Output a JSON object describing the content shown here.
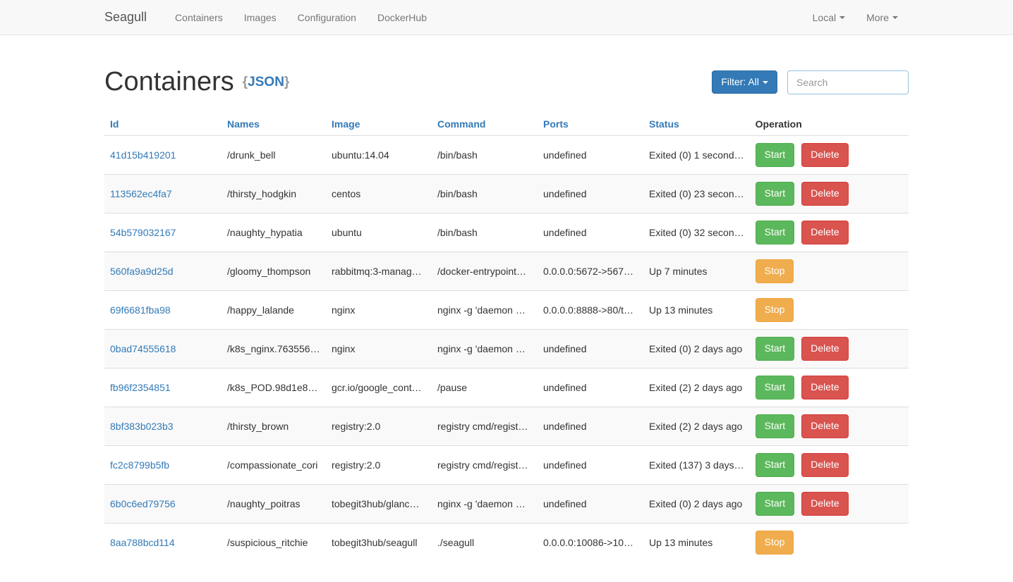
{
  "navbar": {
    "brand": "Seagull",
    "items": [
      {
        "label": "Containers"
      },
      {
        "label": "Images"
      },
      {
        "label": "Configuration"
      },
      {
        "label": "DockerHub"
      }
    ],
    "right_items": [
      {
        "label": "Local"
      },
      {
        "label": "More"
      }
    ]
  },
  "page": {
    "title": "Containers",
    "json_brace_open": "{",
    "json_label": "JSON",
    "json_brace_close": "}",
    "filter_button": "Filter: All",
    "search_placeholder": "Search"
  },
  "colors": {
    "primary": "#337ab7",
    "success": "#5cb85c",
    "danger": "#d9534f",
    "warning": "#f0ad4e",
    "navbar_bg": "#f8f8f8",
    "stripe_bg": "#f9f9f9"
  },
  "table": {
    "headers": [
      "Id",
      "Names",
      "Image",
      "Command",
      "Ports",
      "Status",
      "Operation"
    ],
    "rows": [
      {
        "id": "41d15b419201",
        "name": "/drunk_bell",
        "image": "ubuntu:14.04",
        "command": "/bin/bash",
        "ports": "undefined",
        "status": "Exited (0) 1 second…",
        "actions": [
          "Start",
          "Delete"
        ]
      },
      {
        "id": "113562ec4fa7",
        "name": "/thirsty_hodgkin",
        "image": "centos",
        "command": "/bin/bash",
        "ports": "undefined",
        "status": "Exited (0) 23 secon…",
        "actions": [
          "Start",
          "Delete"
        ]
      },
      {
        "id": "54b579032167",
        "name": "/naughty_hypatia",
        "image": "ubuntu",
        "command": "/bin/bash",
        "ports": "undefined",
        "status": "Exited (0) 32 secon…",
        "actions": [
          "Start",
          "Delete"
        ]
      },
      {
        "id": "560fa9a9d25d",
        "name": "/gloomy_thompson",
        "image": "rabbitmq:3-manag…",
        "command": "/docker-entrypoint…",
        "ports": "0.0.0.0:5672->567…",
        "status": "Up 7 minutes",
        "actions": [
          "Stop"
        ]
      },
      {
        "id": "69f6681fba98",
        "name": "/happy_lalande",
        "image": "nginx",
        "command": "nginx -g 'daemon …",
        "ports": "0.0.0.0:8888->80/t…",
        "status": "Up 13 minutes",
        "actions": [
          "Stop"
        ]
      },
      {
        "id": "0bad74555618",
        "name": "/k8s_nginx.763556…",
        "image": "nginx",
        "command": "nginx -g 'daemon …",
        "ports": "undefined",
        "status": "Exited (0) 2 days ago",
        "actions": [
          "Start",
          "Delete"
        ]
      },
      {
        "id": "fb96f2354851",
        "name": "/k8s_POD.98d1e8…",
        "image": "gcr.io/google_cont…",
        "command": "/pause",
        "ports": "undefined",
        "status": "Exited (2) 2 days ago",
        "actions": [
          "Start",
          "Delete"
        ]
      },
      {
        "id": "8bf383b023b3",
        "name": "/thirsty_brown",
        "image": "registry:2.0",
        "command": "registry cmd/regist…",
        "ports": "undefined",
        "status": "Exited (2) 2 days ago",
        "actions": [
          "Start",
          "Delete"
        ]
      },
      {
        "id": "fc2c8799b5fb",
        "name": "/compassionate_cori",
        "image": "registry:2.0",
        "command": "registry cmd/regist…",
        "ports": "undefined",
        "status": "Exited (137) 3 days…",
        "actions": [
          "Start",
          "Delete"
        ]
      },
      {
        "id": "6b0c6ed79756",
        "name": "/naughty_poitras",
        "image": "tobegit3hub/glanc…",
        "command": "nginx -g 'daemon …",
        "ports": "undefined",
        "status": "Exited (0) 2 days ago",
        "actions": [
          "Start",
          "Delete"
        ]
      },
      {
        "id": "8aa788bcd114",
        "name": "/suspicious_ritchie",
        "image": "tobegit3hub/seagull",
        "command": "./seagull",
        "ports": "0.0.0.0:10086->10…",
        "status": "Up 13 minutes",
        "actions": [
          "Stop"
        ]
      }
    ]
  }
}
